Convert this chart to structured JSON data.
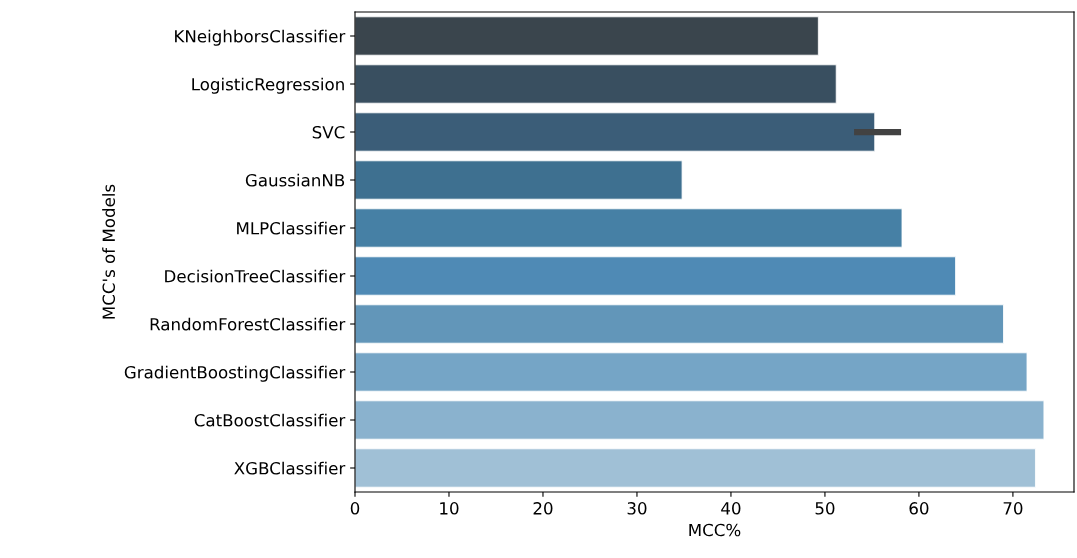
{
  "chart_data": {
    "type": "bar",
    "orientation": "horizontal",
    "xlabel": "MCC%",
    "ylabel": "MCC's of Models",
    "categories": [
      "KNeighborsClassifier",
      "LogisticRegression",
      "SVC",
      "GaussianNB",
      "MLPClassifier",
      "DecisionTreeClassifier",
      "RandomForestClassifier",
      "GradientBoostingClassifier",
      "CatBoostClassifier",
      "XGBClassifier"
    ],
    "values": [
      49.3,
      51.2,
      55.3,
      34.8,
      58.2,
      63.9,
      69.0,
      71.5,
      73.3,
      72.4
    ],
    "colors": [
      "#3a454d",
      "#394f60",
      "#3b5d78",
      "#3e7090",
      "#4680a5",
      "#4f8ab5",
      "#6296b9",
      "#75a5c6",
      "#8ab2ce",
      "#a0c0d6"
    ],
    "errors": [
      null,
      null,
      [
        53.1,
        58.1
      ],
      null,
      null,
      null,
      null,
      null,
      null,
      null
    ],
    "xlim": [
      0,
      76.5
    ],
    "xticks": [
      0,
      10,
      20,
      30,
      40,
      50,
      60,
      70
    ],
    "grid": false
  }
}
